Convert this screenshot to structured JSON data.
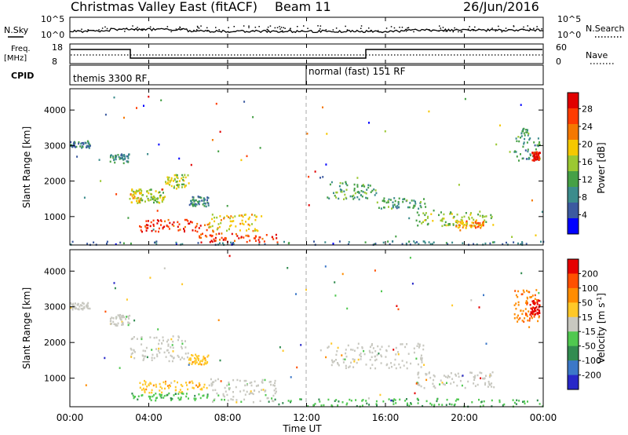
{
  "header": {
    "title": "Christmas Valley East (fitACF)",
    "beam": "Beam 11",
    "date": "26/Jun/2016"
  },
  "status_panels": {
    "nsky_label": "N.Sky",
    "nsearch_label": "N.Search",
    "noise_ticks": [
      "10^5",
      "10^0"
    ],
    "freq_label": "Freq.",
    "freq_unit": "[MHz]",
    "freq_ticks": [
      "18",
      "8"
    ],
    "nave_label": "Nave",
    "nave_ticks": [
      "60",
      "0"
    ],
    "cpid_label": "CPID",
    "cpid_segments": [
      "themis 3300 RF",
      "normal (fast) 151 RF"
    ]
  },
  "axes": {
    "x_ticks": [
      "00:00",
      "04:00",
      "08:00",
      "12:00",
      "16:00",
      "20:00",
      "00:00"
    ],
    "xlabel": "Time UT",
    "range_ticks": [
      "4000",
      "3000",
      "2000",
      "1000"
    ],
    "range_label": "Slant Range [km]"
  },
  "colors": {
    "power": [
      "#0000ff",
      "#3c5aa0",
      "#3c8c8c",
      "#46a046",
      "#9bc832",
      "#f5c800",
      "#f57800",
      "#ff3c00",
      "#e10000"
    ],
    "velocity": [
      "#2828c8",
      "#3c78c8",
      "#328c50",
      "#50c850",
      "#c8c8c0",
      "#ffc828",
      "#ff8c00",
      "#ff5000",
      "#e60000"
    ]
  },
  "chart_data": [
    {
      "type": "heatmap",
      "title": "",
      "xlabel": "Time UT",
      "ylabel": "Slant Range [km]",
      "xlim": [
        0,
        24
      ],
      "ylim": [
        200,
        4600
      ],
      "colorbar": {
        "label": "Power [dB]",
        "ticks": [
          "28",
          "24",
          "20",
          "16",
          "12",
          "8",
          "4"
        ],
        "range": [
          0,
          30
        ]
      },
      "features": [
        {
          "t": [
            0.0,
            1.0
          ],
          "range": [
            2950,
            3150
          ],
          "value": 8
        },
        {
          "t": [
            2.0,
            3.0
          ],
          "range": [
            2500,
            2800
          ],
          "value": 9
        },
        {
          "t": [
            3.0,
            3.6
          ],
          "range": [
            1400,
            1800
          ],
          "value": 17
        },
        {
          "t": [
            3.6,
            4.8
          ],
          "range": [
            1400,
            1800
          ],
          "value": 15
        },
        {
          "t": [
            4.8,
            6.0
          ],
          "range": [
            1800,
            2200
          ],
          "value": 16
        },
        {
          "t": [
            6.0,
            7.0
          ],
          "range": [
            1300,
            1600
          ],
          "value": 8
        },
        {
          "t": [
            3.5,
            7.0
          ],
          "range": [
            600,
            950
          ],
          "value": 26
        },
        {
          "t": [
            7.0,
            9.5
          ],
          "range": [
            600,
            1100
          ],
          "value": 18
        },
        {
          "t": [
            6.5,
            10.5
          ],
          "range": [
            300,
            550
          ],
          "value": 26
        },
        {
          "t": [
            0.0,
            24.0
          ],
          "range": [
            230,
            330
          ],
          "value": 7
        },
        {
          "t": [
            13.0,
            15.5
          ],
          "range": [
            1500,
            2000
          ],
          "value": 12
        },
        {
          "t": [
            15.5,
            18.0
          ],
          "range": [
            1250,
            1550
          ],
          "value": 10
        },
        {
          "t": [
            17.5,
            21.5
          ],
          "range": [
            750,
            1200
          ],
          "value": 14
        },
        {
          "t": [
            19.5,
            21.0
          ],
          "range": [
            700,
            900
          ],
          "value": 21
        },
        {
          "t": [
            22.5,
            23.8
          ],
          "range": [
            2600,
            3500
          ],
          "value": 10
        },
        {
          "t": [
            23.4,
            23.8
          ],
          "range": [
            2600,
            2850
          ],
          "value": 28
        }
      ]
    },
    {
      "type": "heatmap",
      "title": "",
      "xlabel": "Time UT",
      "ylabel": "Slant Range [km]",
      "xlim": [
        0,
        24
      ],
      "ylim": [
        200,
        4600
      ],
      "colorbar": {
        "label": "Velocity [m s^-1]",
        "ticks": [
          "200",
          "100",
          "50",
          "15",
          "-15",
          "-50",
          "-100",
          "-200"
        ],
        "range": [
          -250,
          250
        ]
      },
      "features": [
        {
          "t": [
            0.0,
            1.0
          ],
          "range": [
            2950,
            3150
          ],
          "value": 0
        },
        {
          "t": [
            2.0,
            3.0
          ],
          "range": [
            2500,
            2800
          ],
          "value": 0
        },
        {
          "t": [
            3.0,
            6.0
          ],
          "range": [
            1500,
            2200
          ],
          "value": 0
        },
        {
          "t": [
            6.0,
            7.0
          ],
          "range": [
            1400,
            1700
          ],
          "value": 60
        },
        {
          "t": [
            3.5,
            7.0
          ],
          "range": [
            600,
            950
          ],
          "value": 60
        },
        {
          "t": [
            7.0,
            10.5
          ],
          "range": [
            350,
            1000
          ],
          "value": 0
        },
        {
          "t": [
            3.0,
            8.0
          ],
          "range": [
            400,
            600
          ],
          "value": -60
        },
        {
          "t": [
            10.0,
            24.0
          ],
          "range": [
            230,
            450
          ],
          "value": -70
        },
        {
          "t": [
            13.0,
            18.0
          ],
          "range": [
            1300,
            2000
          ],
          "value": 0
        },
        {
          "t": [
            17.5,
            21.5
          ],
          "range": [
            750,
            1200
          ],
          "value": 0
        },
        {
          "t": [
            22.5,
            23.8
          ],
          "range": [
            2600,
            3500
          ],
          "value": 120
        },
        {
          "t": [
            23.3,
            23.8
          ],
          "range": [
            2800,
            3200
          ],
          "value": 230
        }
      ]
    }
  ]
}
